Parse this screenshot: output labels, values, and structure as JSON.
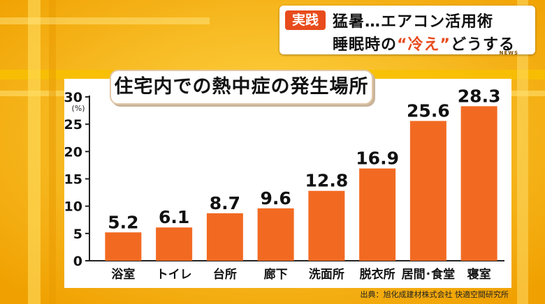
{
  "caption": {
    "tag": "実践",
    "line1": "猛暑…エアコン活用術",
    "line2_before": "睡眠時の",
    "line2_highlight": "“冷え”",
    "line2_after": "どうする",
    "logo_text": "NEWS"
  },
  "source": "出典：旭化成建材株式会社 快適空間研究所",
  "colors": {
    "bar": "#f26a22",
    "accent": "#e84b1c"
  },
  "chart_data": {
    "type": "bar",
    "title": "住宅内での熱中症の発生場所",
    "ylabel": "(%)",
    "ylim": [
      0,
      30
    ],
    "yticks": [
      "0",
      "5",
      "10",
      "15",
      "20",
      "25",
      "30"
    ],
    "categories": [
      "浴室",
      "トイレ",
      "台所",
      "廊下",
      "洗面所",
      "脱衣所",
      "居間･食堂",
      "寝室"
    ],
    "values": [
      5.2,
      6.1,
      8.7,
      9.6,
      12.8,
      16.9,
      25.6,
      28.3
    ],
    "value_labels": [
      "5.2",
      "6.1",
      "8.7",
      "9.6",
      "12.8",
      "16.9",
      "25.6",
      "28.3"
    ],
    "grid": false,
    "legend": "none"
  }
}
